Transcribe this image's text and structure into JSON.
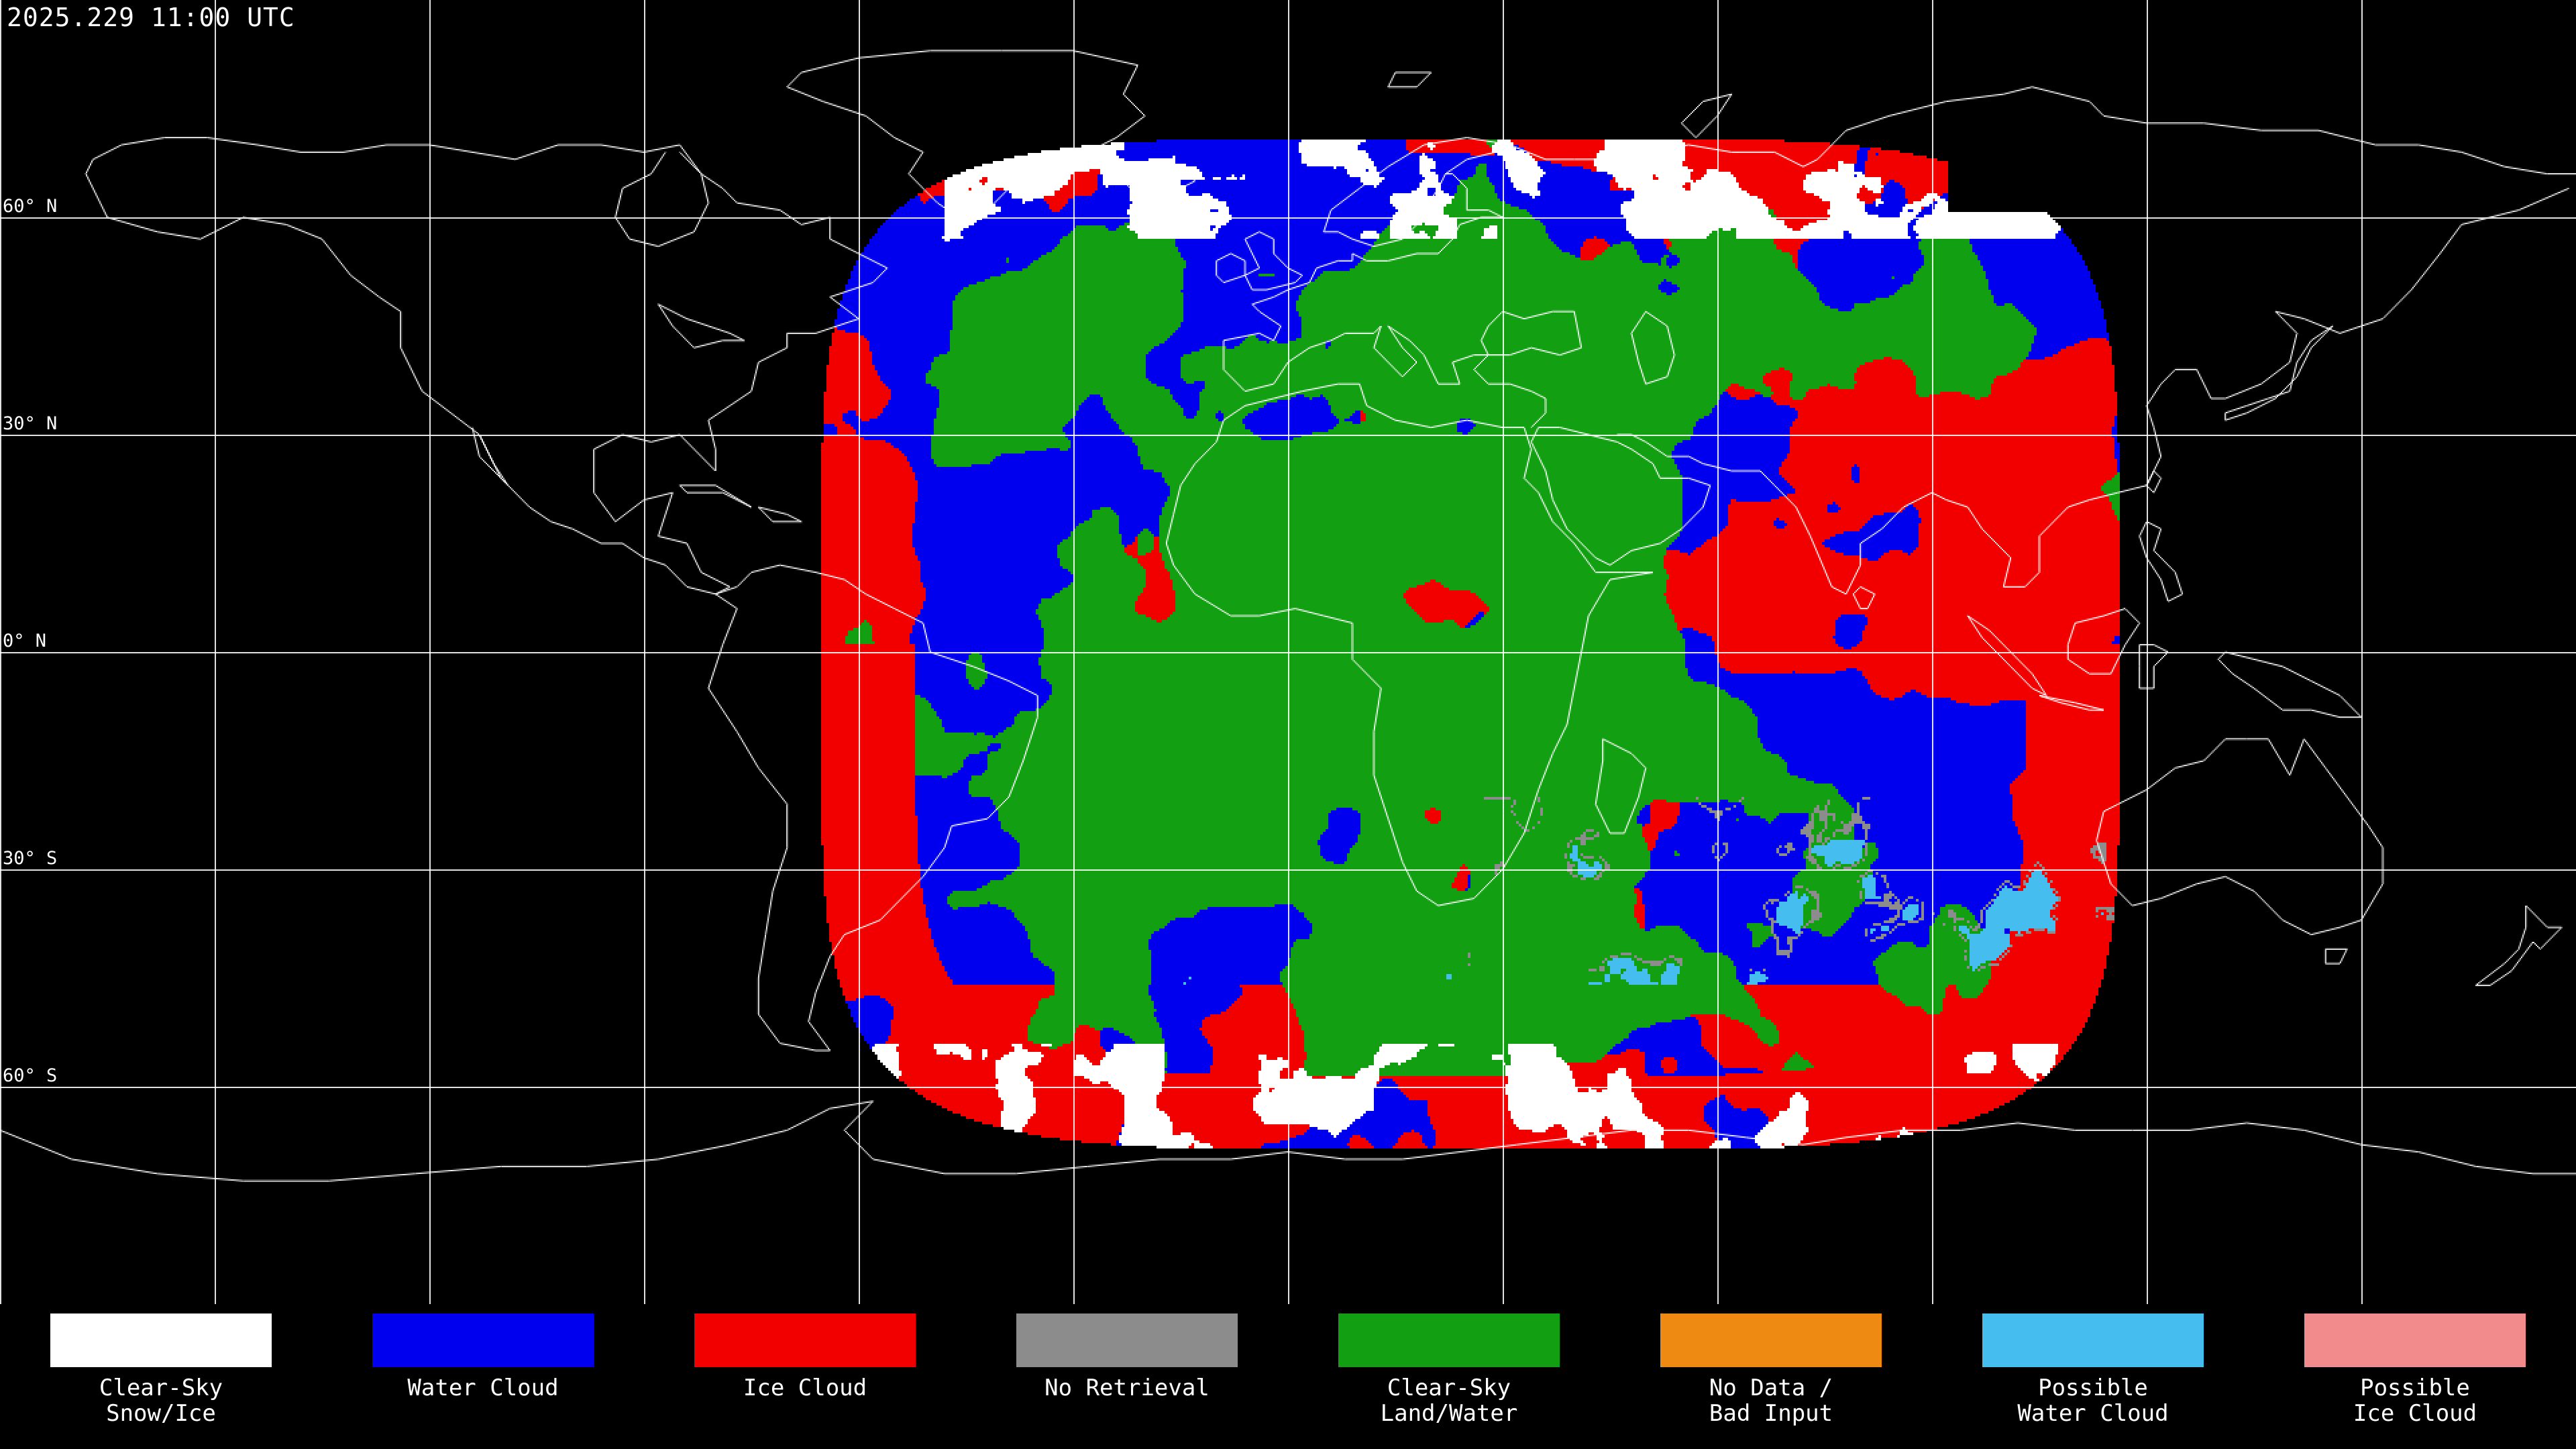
{
  "header": {
    "timestamp": "2025.229 11:00 UTC"
  },
  "map": {
    "projection": "equirectangular",
    "grid_spacing_deg": 30,
    "latitude_labels": [
      {
        "label": "60° N"
      },
      {
        "label": "30° N"
      },
      {
        "label": "0° N"
      },
      {
        "label": "30° S"
      },
      {
        "label": "60° S"
      }
    ],
    "colors": {
      "background": "#000000",
      "gridline": "#FFFFFF",
      "coastline": "#FFFFFF",
      "text": "#FFFFFF"
    }
  },
  "legend": {
    "items": [
      {
        "key": "clear_sky_snow_ice",
        "line1": "Clear-Sky",
        "line2": "Snow/Ice",
        "color": "#FFFFFF"
      },
      {
        "key": "water_cloud",
        "line1": "Water Cloud",
        "line2": "",
        "color": "#0000EE"
      },
      {
        "key": "ice_cloud",
        "line1": "Ice Cloud",
        "line2": "",
        "color": "#F20000"
      },
      {
        "key": "no_retrieval",
        "line1": "No Retrieval",
        "line2": "",
        "color": "#8C8C8C"
      },
      {
        "key": "clear_sky_land_water",
        "line1": "Clear-Sky",
        "line2": "Land/Water",
        "color": "#12A012"
      },
      {
        "key": "no_data_bad_input",
        "line1": "No Data /",
        "line2": "Bad Input",
        "color": "#EE8A12"
      },
      {
        "key": "possible_water_cloud",
        "line1": "Possible",
        "line2": "Water Cloud",
        "color": "#45BEEF"
      },
      {
        "key": "possible_ice_cloud",
        "line1": "Possible",
        "line2": "Ice Cloud",
        "color": "#F28B8B"
      }
    ]
  }
}
